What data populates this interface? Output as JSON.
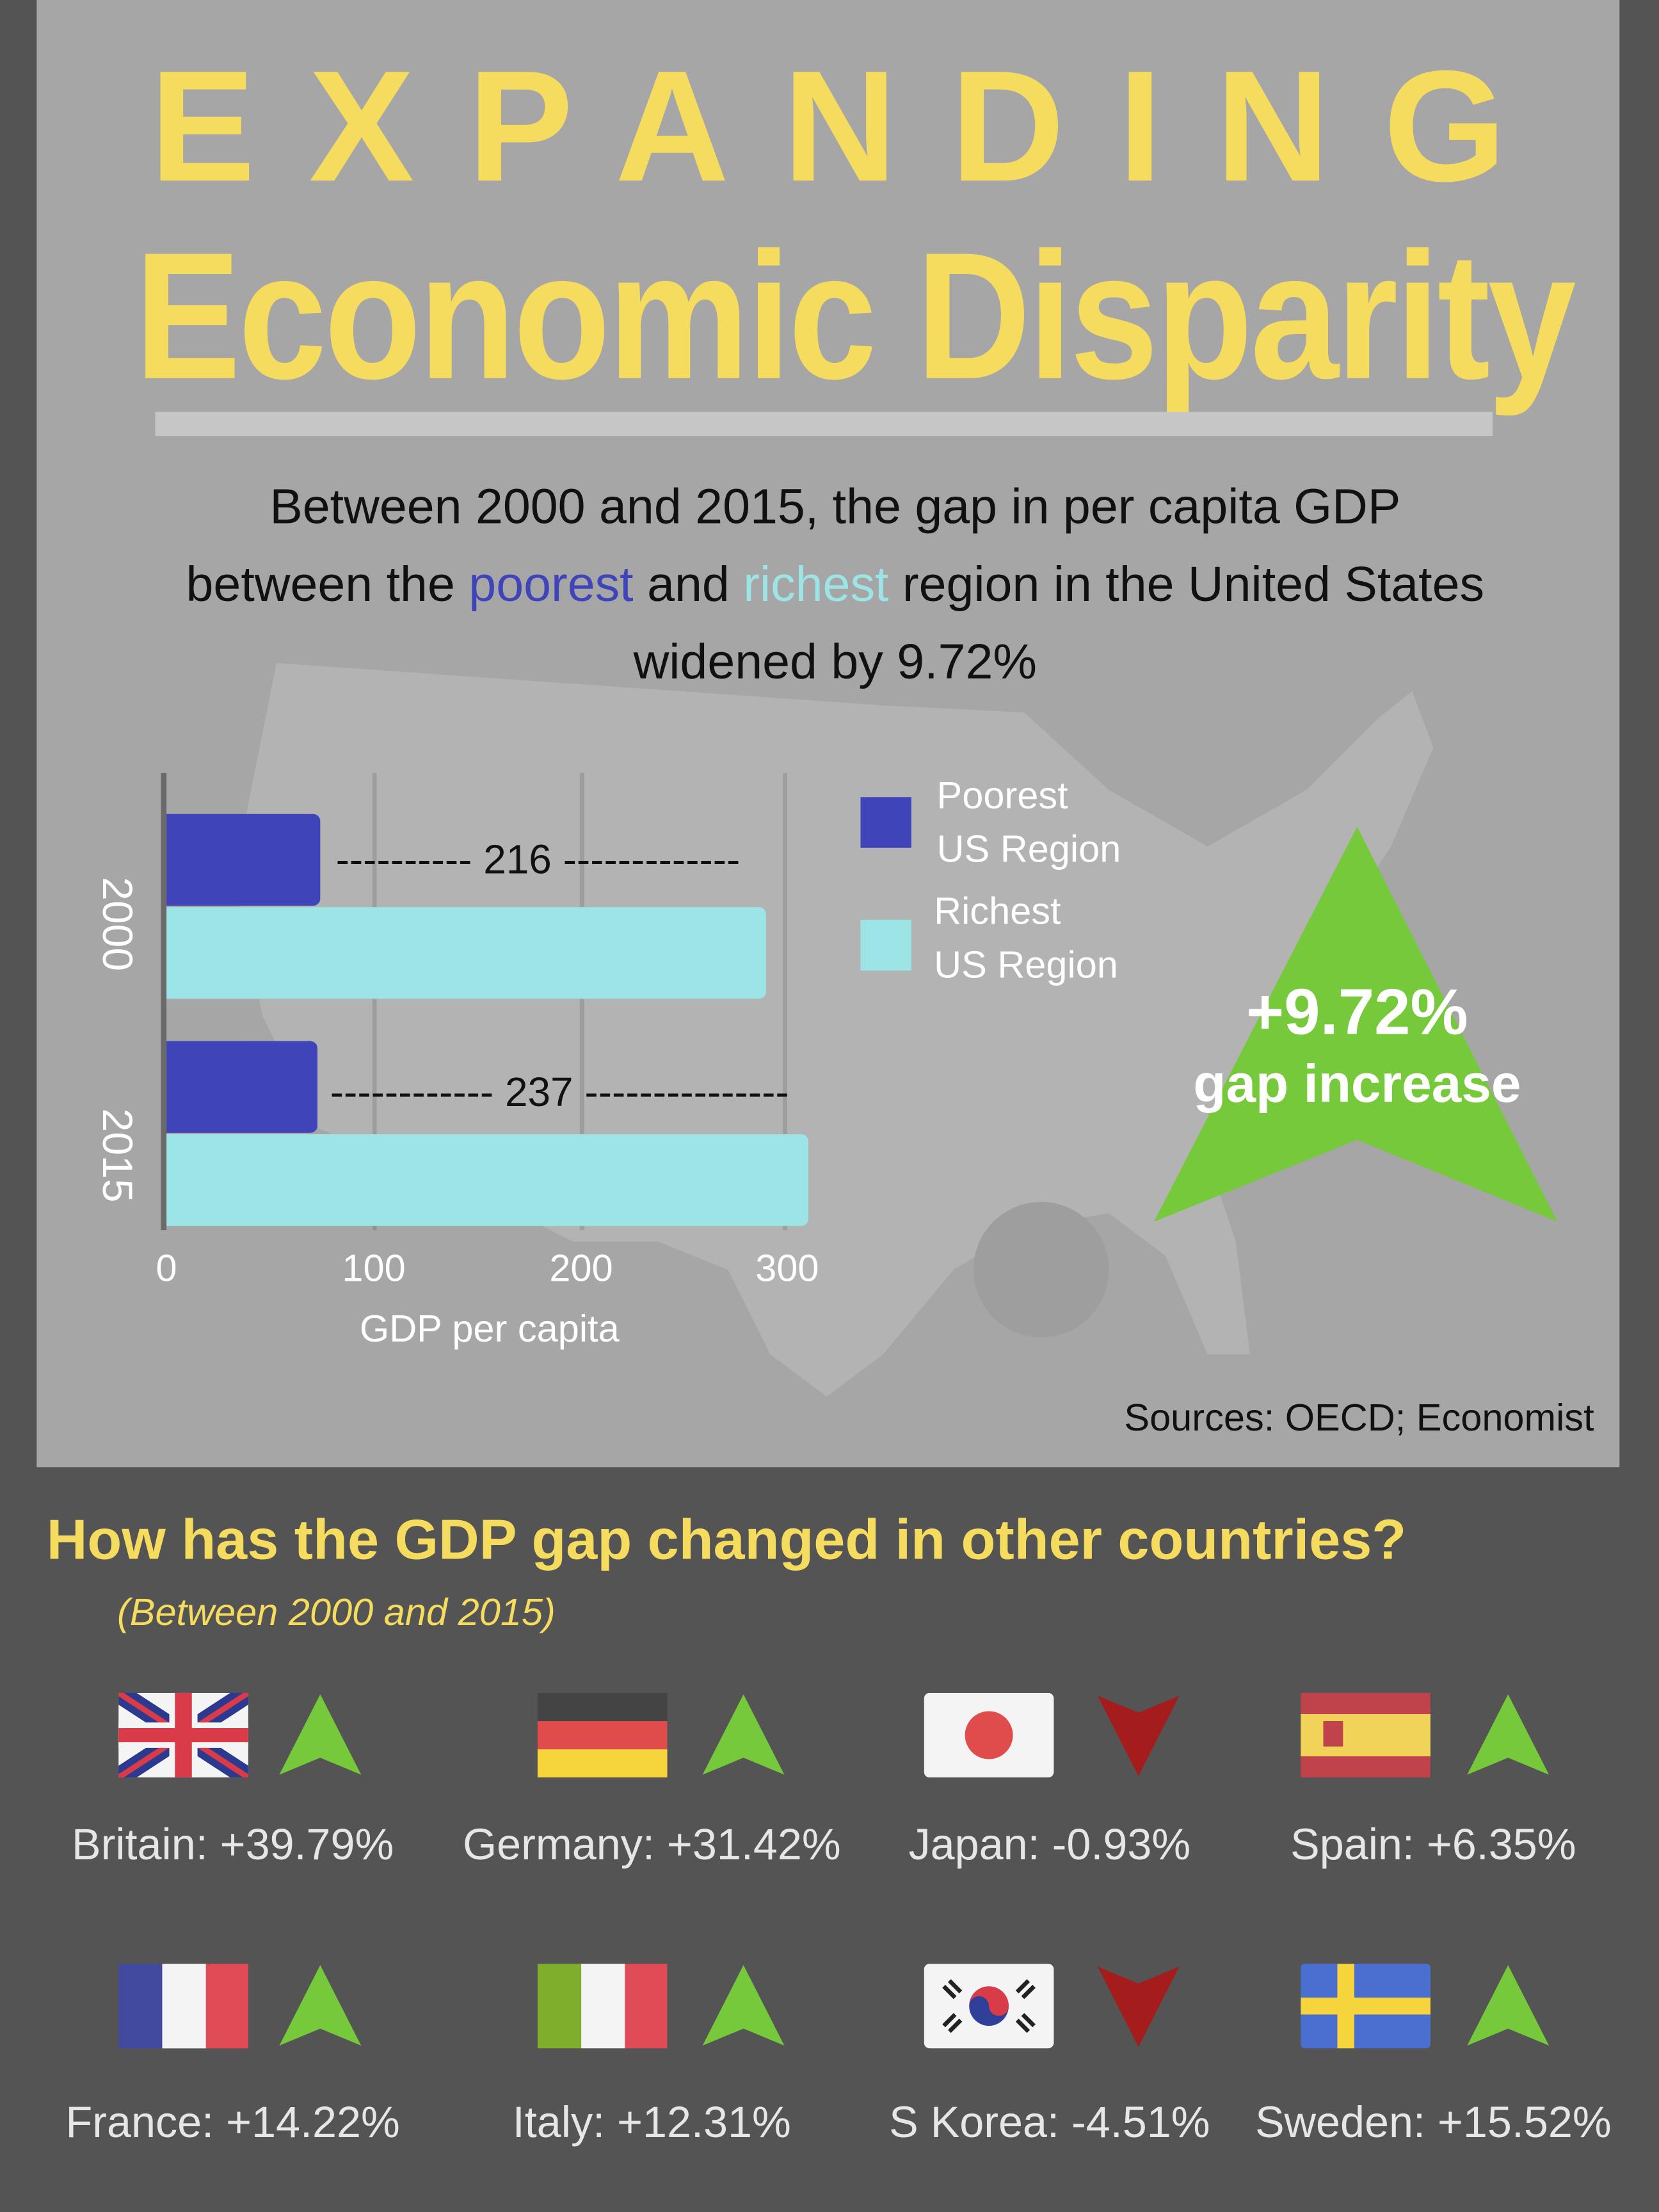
{
  "title": {
    "line1": "EXPANDING",
    "line2": "Economic Disparity"
  },
  "intro": {
    "part1": "Between 2000 and 2015, the gap in per capita GDP",
    "part2": "between the ",
    "poorest": "poorest",
    "part3": " and ",
    "richest": "richest",
    "part4": " region in the United States",
    "part5": "widened by 9.72%"
  },
  "colors": {
    "yellow": "#f5dc5e",
    "poorest": "#3f44b8",
    "richest": "#9de4e6",
    "up": "#76c93a",
    "down": "#a51c1c"
  },
  "chart_data": {
    "type": "bar",
    "orientation": "horizontal",
    "categories": [
      "2000",
      "2015"
    ],
    "series": [
      {
        "name": "Poorest US Region",
        "values": [
          74,
          73
        ]
      },
      {
        "name": "Richest US Region",
        "values": [
          290,
          310
        ]
      }
    ],
    "gap_labels": [
      "216",
      "237"
    ],
    "xlabel": "GDP per capita",
    "xlim": [
      0,
      300
    ],
    "ticks": [
      "0",
      "100",
      "200",
      "300"
    ],
    "grid": true,
    "legend": [
      {
        "line1": "Poorest",
        "line2": "US Region"
      },
      {
        "line1": "Richest",
        "line2": "US Region"
      }
    ],
    "legend_placement": "right"
  },
  "callout": {
    "value": "+9.72%",
    "label": "gap increase"
  },
  "sources": "Sources: OECD; Economist",
  "countries_section": {
    "heading": "How has the GDP gap changed in other countries?",
    "subheading": "(Between 2000 and 2015)",
    "items": [
      {
        "label": "Britain: +39.79%",
        "direction": "up"
      },
      {
        "label": "Germany: +31.42%",
        "direction": "up"
      },
      {
        "label": "Japan: -0.93%",
        "direction": "down"
      },
      {
        "label": "Spain: +6.35%",
        "direction": "up"
      },
      {
        "label": "France: +14.22%",
        "direction": "up"
      },
      {
        "label": "Italy: +12.31%",
        "direction": "up"
      },
      {
        "label": "S Korea: -4.51%",
        "direction": "down"
      },
      {
        "label": "Sweden: +15.52%",
        "direction": "up"
      }
    ]
  }
}
